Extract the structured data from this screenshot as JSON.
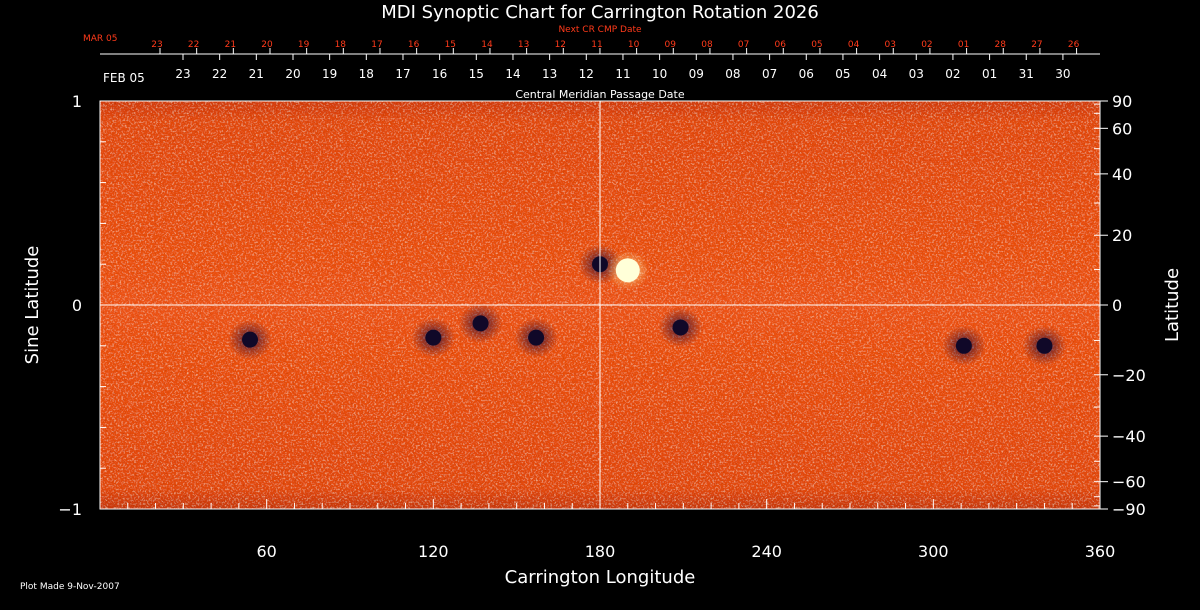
{
  "chart_data": {
    "type": "heatmap",
    "title": "MDI Synoptic Chart for Carrington Rotation 2026",
    "xlabel": "Carrington Longitude",
    "ylabel_left": "Sine Latitude",
    "ylabel_right": "Latitude",
    "xlim": [
      0,
      360
    ],
    "ylim_sine": [
      -1,
      1
    ],
    "x_ticks": [
      60,
      120,
      180,
      240,
      300,
      360
    ],
    "x_tick_labels": [
      "60",
      "120",
      "180",
      "240",
      "300",
      "360"
    ],
    "y_left_ticks": [
      1,
      0,
      -1
    ],
    "y_left_tick_labels": [
      "1",
      "0",
      "−1"
    ],
    "y_right_ticks": [
      90,
      60,
      40,
      20,
      0,
      -20,
      -40,
      -60,
      -90
    ],
    "y_right_tick_labels": [
      "90",
      "60",
      "40",
      "20",
      "0",
      "−20",
      "−40",
      "−60",
      "−90"
    ],
    "grid_lines": {
      "longitude": 180,
      "sine_latitude": 0
    },
    "cmp_date_label": "Central Meridian Passage Date",
    "cmp_month_label": "FEB 05",
    "cmp_dates": [
      "23",
      "22",
      "21",
      "20",
      "19",
      "18",
      "17",
      "16",
      "15",
      "14",
      "13",
      "12",
      "11",
      "10",
      "09",
      "08",
      "07",
      "06",
      "05",
      "04",
      "03",
      "02",
      "01",
      "31",
      "30"
    ],
    "next_cr_label": "Next CR CMP Date",
    "next_cr_month_label": "MAR 05",
    "next_cr_dates": [
      "23",
      "22",
      "21",
      "20",
      "19",
      "18",
      "17",
      "16",
      "15",
      "14",
      "13",
      "12",
      "11",
      "10",
      "09",
      "08",
      "07",
      "06",
      "05",
      "04",
      "03",
      "02",
      "01",
      "28",
      "27",
      "26"
    ],
    "features": [
      {
        "lon": 120,
        "sinlat": -0.16,
        "polarity": "negative"
      },
      {
        "lon": 157,
        "sinlat": -0.16,
        "polarity": "negative"
      },
      {
        "lon": 137,
        "sinlat": -0.09,
        "polarity": "negative"
      },
      {
        "lon": 54,
        "sinlat": -0.17,
        "polarity": "negative"
      },
      {
        "lon": 180,
        "sinlat": 0.2,
        "polarity": "negative"
      },
      {
        "lon": 190,
        "sinlat": 0.17,
        "polarity": "positive"
      },
      {
        "lon": 209,
        "sinlat": -0.11,
        "polarity": "negative"
      },
      {
        "lon": 311,
        "sinlat": -0.2,
        "polarity": "negative"
      },
      {
        "lon": 340,
        "sinlat": -0.2,
        "polarity": "negative"
      }
    ],
    "colors": {
      "background": "#000000",
      "field": "#e8490e",
      "positive": "#ffffd8",
      "negative": "#100828",
      "text": "#ffffff",
      "next_cr_text": "#ff3a1a"
    }
  },
  "footer": {
    "plot_made": "Plot Made  9-Nov-2007"
  }
}
